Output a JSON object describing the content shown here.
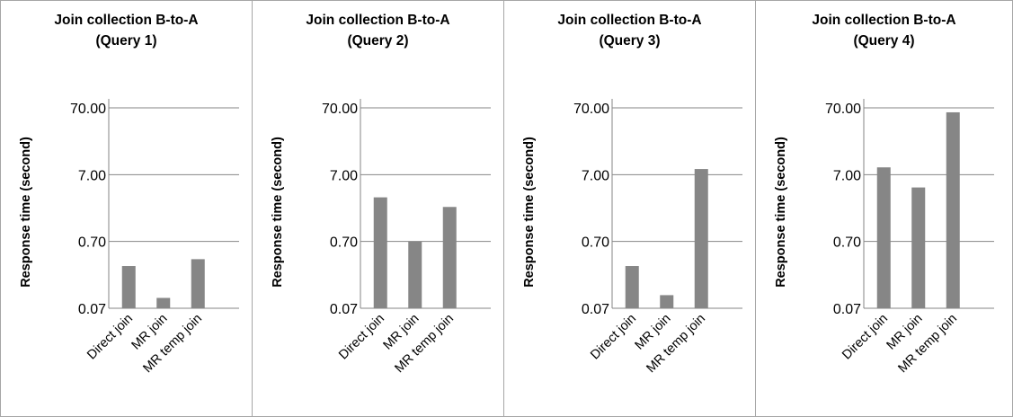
{
  "chart_data": [
    {
      "type": "bar",
      "title": "Join collection B-to-A",
      "subtitle": "(Query 1)",
      "ylabel": "Response time (second)",
      "yscale": "log",
      "ylim": [
        0.07,
        70
      ],
      "yticks": [
        "70.00",
        "7.00",
        "0.70",
        "0.07"
      ],
      "categories": [
        "Direct join",
        "MR join",
        "MR temp join"
      ],
      "values": [
        0.3,
        0.1,
        0.38
      ],
      "color": "#868686"
    },
    {
      "type": "bar",
      "title": "Join collection B-to-A",
      "subtitle": "(Query 2)",
      "ylabel": "Response time (second)",
      "yscale": "log",
      "ylim": [
        0.07,
        70
      ],
      "yticks": [
        "70.00",
        "7.00",
        "0.70",
        "0.07"
      ],
      "categories": [
        "Direct join",
        "MR join",
        "MR temp join"
      ],
      "values": [
        3.2,
        0.7,
        2.3
      ],
      "color": "#868686"
    },
    {
      "type": "bar",
      "title": "Join collection B-to-A",
      "subtitle": "(Query 3)",
      "ylabel": "Response time (second)",
      "yscale": "log",
      "ylim": [
        0.07,
        70
      ],
      "yticks": [
        "70.00",
        "7.00",
        "0.70",
        "0.07"
      ],
      "categories": [
        "Direct join",
        "MR join",
        "MR temp join"
      ],
      "values": [
        0.3,
        0.11,
        8.5
      ],
      "color": "#868686"
    },
    {
      "type": "bar",
      "title": "Join collection B-to-A",
      "subtitle": "(Query 4)",
      "ylabel": "Response time (second)",
      "yscale": "log",
      "ylim": [
        0.07,
        70
      ],
      "yticks": [
        "70.00",
        "7.00",
        "0.70",
        "0.07"
      ],
      "categories": [
        "Direct join",
        "MR join",
        "MR temp join"
      ],
      "values": [
        9.0,
        4.5,
        60
      ],
      "color": "#868686"
    }
  ]
}
